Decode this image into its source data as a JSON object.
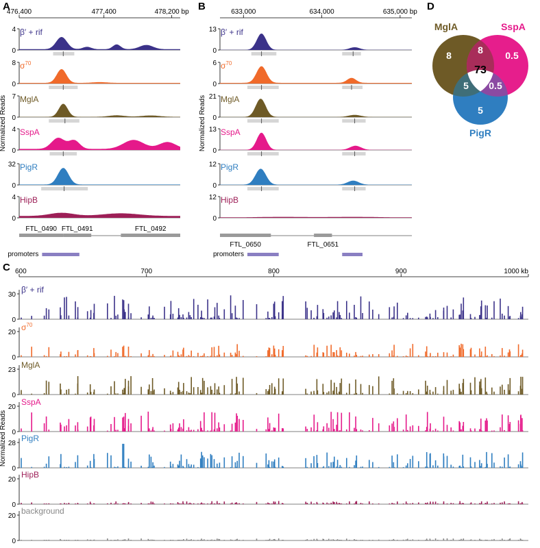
{
  "panel_letters": {
    "a": "A",
    "b": "B",
    "c": "C",
    "d": "D"
  },
  "track_colors": {
    "beta_rif": "#3b3289",
    "sigma70": "#f06a2a",
    "mgla": "#6e5a26",
    "sspa": "#e5198a",
    "pigr": "#2f7ec0",
    "hipb": "#9d1f57",
    "background": "#888888"
  },
  "chart_data": [
    {
      "panel": "A",
      "type": "area",
      "xlim": [
        476400,
        478300
      ],
      "x_ticks": [
        "476,400",
        "477,400",
        "478,200 bp"
      ],
      "x_tick_values": [
        476400,
        477400,
        478200
      ],
      "ylabel": "Normalized Reads",
      "tracks": [
        {
          "key": "beta_rif",
          "label": "β′ + rif",
          "ymax": 4,
          "ymax_label": "4",
          "zero_label": "0",
          "peaks": [
            [
              476900,
              2.3,
              90
            ],
            [
              477200,
              0.45,
              70
            ],
            [
              477550,
              0.9,
              65
            ],
            [
              477900,
              0.8,
              110
            ]
          ],
          "base": 0.15,
          "peak_marks": [
            [
              476800,
              477050,
              476920
            ]
          ]
        },
        {
          "key": "sigma70",
          "label": "σ70",
          "ymax": 8,
          "ymax_label": "8",
          "zero_label": "0",
          "peaks": [
            [
              476900,
              5.2,
              80
            ],
            [
              477350,
              0.3,
              120
            ]
          ],
          "base": 0.25,
          "peak_marks": [
            [
              476750,
              477090,
              476920
            ]
          ]
        },
        {
          "key": "mgla",
          "label": "MglA",
          "ymax": 7,
          "ymax_label": "7",
          "zero_label": "0",
          "peaks": [
            [
              476920,
              4.3,
              75
            ],
            [
              477550,
              0.5,
              130
            ],
            [
              477950,
              0.45,
              150
            ]
          ],
          "base": 0.1,
          "peak_marks": [
            [
              476750,
              477110,
              476940
            ]
          ]
        },
        {
          "key": "sspa",
          "label": "SspA",
          "ymax": 4,
          "ymax_label": "4",
          "zero_label": "0",
          "peaks": [
            [
              476860,
              2.1,
              110
            ],
            [
              477050,
              1.6,
              90
            ],
            [
              477750,
              1.7,
              170
            ],
            [
              478150,
              1.3,
              140
            ]
          ],
          "base": 0.2,
          "peak_marks": [
            [
              476760,
              477080,
              476920
            ]
          ]
        },
        {
          "key": "pigr",
          "label": "PigR",
          "ymax": 32,
          "ymax_label": "32",
          "zero_label": "0",
          "peaks": [
            [
              476920,
              25,
              90
            ]
          ],
          "base": 0.6,
          "peak_marks": [
            [
              476660,
              477210,
              476930
            ]
          ]
        },
        {
          "key": "hipb",
          "label": "HipB",
          "ymax": 4,
          "ymax_label": "4",
          "zero_label": "0",
          "peaks": [
            [
              476900,
              0.6,
              200
            ],
            [
              477600,
              0.5,
              300
            ]
          ],
          "base": 0.35,
          "peak_marks": []
        }
      ],
      "genes": [
        {
          "label": "FTL_0490",
          "start": 476400,
          "end": 476920
        },
        {
          "label": "FTL_0491",
          "start": 476920,
          "end": 477250
        },
        {
          "label": "FTL_0492",
          "start": 477600,
          "end": 478300
        }
      ],
      "promoters_label": "promoters",
      "promoters": [
        [
          476670,
          477110
        ]
      ]
    },
    {
      "panel": "B",
      "type": "area",
      "xlim": [
        632700,
        635150
      ],
      "x_ticks": [
        "633,000",
        "634,000",
        "635,000 bp"
      ],
      "x_tick_values": [
        633000,
        634000,
        635000
      ],
      "ylabel": "Normalized Reads",
      "tracks": [
        {
          "key": "beta_rif",
          "label": "β′ + rif",
          "ymax": 13,
          "ymax_label": "13",
          "zero_label": "0",
          "peaks": [
            [
              633230,
              10,
              85
            ],
            [
              634420,
              1.6,
              90
            ]
          ],
          "base": 0.1,
          "peak_marks": [
            [
              633100,
              633420,
              633230
            ],
            [
              634260,
              634500,
              634400
            ]
          ]
        },
        {
          "key": "sigma70",
          "label": "σ70",
          "ymax": 6,
          "ymax_label": "6",
          "zero_label": "0",
          "peaks": [
            [
              633230,
              4.7,
              90
            ],
            [
              634380,
              1.4,
              80
            ]
          ],
          "base": 0.2,
          "peak_marks": [
            [
              633050,
              633450,
              633230
            ],
            [
              634260,
              634520,
              634380
            ]
          ]
        },
        {
          "key": "mgla",
          "label": "MglA",
          "ymax": 21,
          "ymax_label": "21",
          "zero_label": "0",
          "peaks": [
            [
              633220,
              18,
              90
            ],
            [
              634420,
              2.0,
              110
            ]
          ],
          "base": 0.2,
          "peak_marks": [
            [
              633050,
              633450,
              633230
            ],
            [
              634260,
              634560,
              634420
            ]
          ]
        },
        {
          "key": "sspa",
          "label": "SspA",
          "ymax": 13,
          "ymax_label": "13",
          "zero_label": "0",
          "peaks": [
            [
              633230,
              10.5,
              85
            ],
            [
              634430,
              2.5,
              100
            ]
          ],
          "base": 0.1,
          "peak_marks": [
            [
              633050,
              633450,
              633230
            ],
            [
              634260,
              634560,
              634420
            ]
          ]
        },
        {
          "key": "pigr",
          "label": "PigR",
          "ymax": 12,
          "ymax_label": "12",
          "zero_label": "0",
          "peaks": [
            [
              633220,
              9,
              95
            ],
            [
              634400,
              2.3,
              100
            ]
          ],
          "base": 0.15,
          "peak_marks": [
            [
              633050,
              633450,
              633230
            ],
            [
              634260,
              634560,
              634420
            ]
          ]
        },
        {
          "key": "hipb",
          "label": "HipB",
          "ymax": 12,
          "ymax_label": "12",
          "zero_label": "0",
          "peaks": [
            [
              633500,
              0.3,
              400
            ],
            [
              634400,
              0.3,
              400
            ]
          ],
          "base": 0.25,
          "peak_marks": []
        }
      ],
      "genes": [
        {
          "label": "FTL_0650",
          "start": 632700,
          "end": 633350
        },
        {
          "label": "FTL_0651",
          "start": 633900,
          "end": 634130
        }
      ],
      "promoters_label": "promoters",
      "promoters": [
        [
          633050,
          633450
        ],
        [
          634260,
          634520
        ]
      ]
    },
    {
      "panel": "C",
      "type": "bar",
      "xlim": [
        600,
        1000
      ],
      "x_ticks": [
        "600",
        "700",
        "800",
        "900",
        "1000 kb"
      ],
      "x_tick_values": [
        600,
        700,
        800,
        900,
        1000
      ],
      "ylabel": "Normalized Reads",
      "tracks": [
        {
          "key": "beta_rif",
          "label": "β′ + rif",
          "ymax": 30,
          "tick_labels": [
            "30",
            "0"
          ]
        },
        {
          "key": "sigma70",
          "label": "σ70",
          "ymax": 20,
          "tick_labels": [
            "20",
            "0"
          ]
        },
        {
          "key": "mgla",
          "label": "MglA",
          "ymax": 23,
          "tick_labels": [
            "23",
            "0"
          ]
        },
        {
          "key": "sspa",
          "label": "SspA",
          "ymax": 20,
          "tick_labels": [
            "20",
            "0"
          ]
        },
        {
          "key": "pigr",
          "label": "PigR",
          "ymax": 28,
          "tick_labels": [
            "28",
            "0"
          ]
        },
        {
          "key": "hipb",
          "label": "HipB",
          "ymax": 20,
          "tick_labels": [
            "20",
            "0"
          ]
        },
        {
          "key": "background",
          "label": "background",
          "ymax": 20,
          "tick_labels": [
            "20",
            "0"
          ]
        }
      ]
    },
    {
      "panel": "D",
      "type": "venn",
      "sets": [
        {
          "key": "mgla",
          "label": "MglA",
          "color": "#6e5a26"
        },
        {
          "key": "sspa",
          "label": "SspA",
          "color": "#e5198a"
        },
        {
          "key": "pigr",
          "label": "PigR",
          "color": "#2f7ec0"
        }
      ],
      "regions": {
        "mgla_only": "8",
        "sspa_only": "0.5",
        "pigr_only": "5",
        "mgla_sspa": "8",
        "mgla_pigr": "5",
        "sspa_pigr": "0.5",
        "all": "73"
      }
    }
  ]
}
